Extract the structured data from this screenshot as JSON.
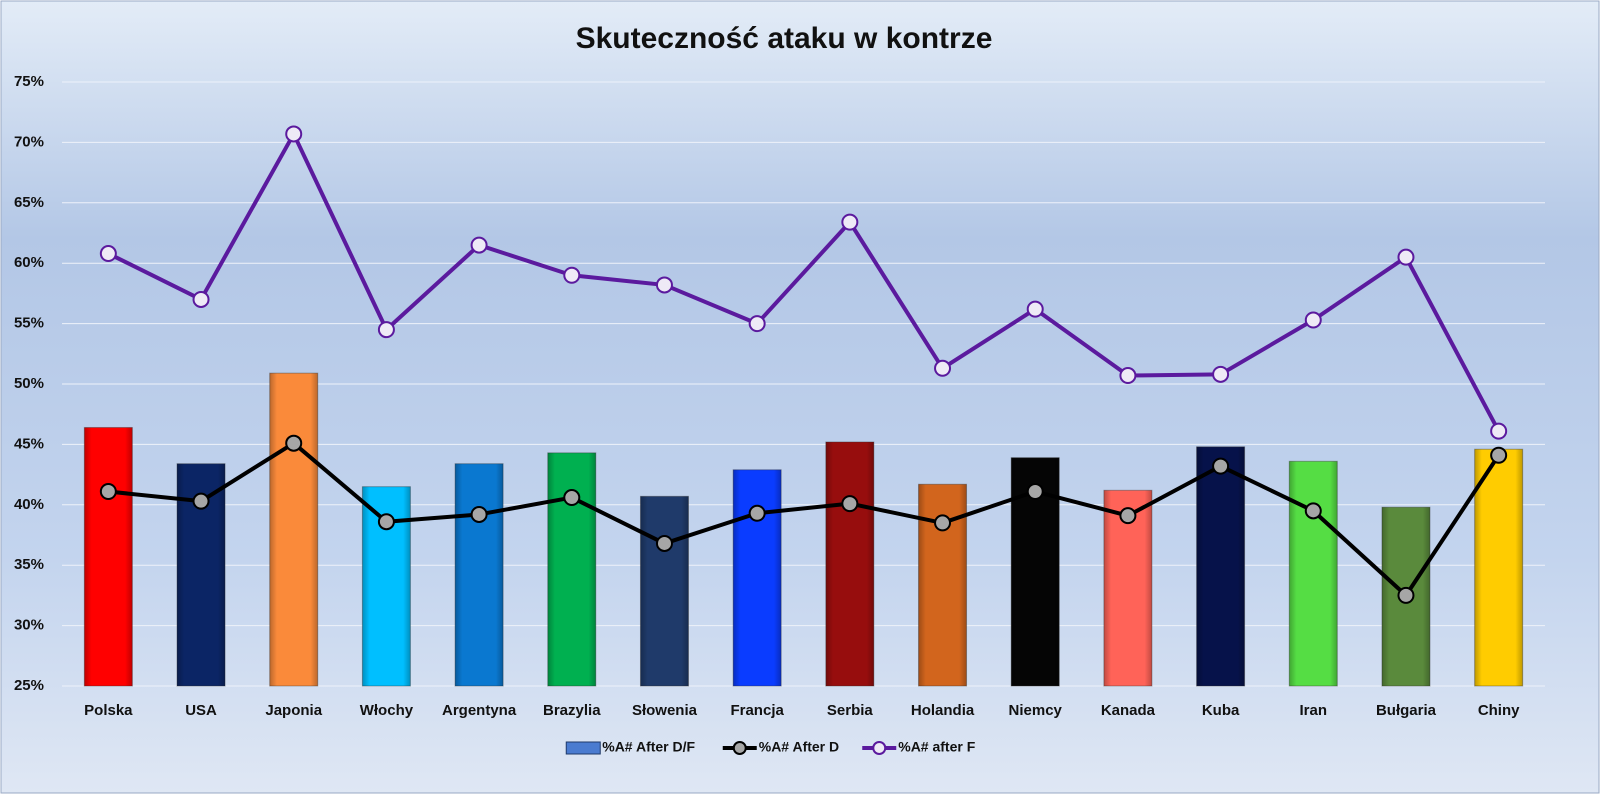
{
  "chart_data": {
    "type": "combo",
    "title": "Skuteczność ataku w kontrze",
    "categories": [
      "Polska",
      "USA",
      "Japonia",
      "Włochy",
      "Argentyna",
      "Brazylia",
      "Słowenia",
      "Francja",
      "Serbia",
      "Holandia",
      "Niemcy",
      "Kanada",
      "Kuba",
      "Iran",
      "Bułgaria",
      "Chiny"
    ],
    "ylim": [
      25,
      75
    ],
    "yticks": [
      {
        "value": 25,
        "label": "25%"
      },
      {
        "value": 30,
        "label": "30%"
      },
      {
        "value": 35,
        "label": "35%"
      },
      {
        "value": 40,
        "label": "40%"
      },
      {
        "value": 45,
        "label": "45%"
      },
      {
        "value": 50,
        "label": "50%"
      },
      {
        "value": 55,
        "label": "55%"
      },
      {
        "value": 60,
        "label": "60%"
      },
      {
        "value": 65,
        "label": "65%"
      },
      {
        "value": 70,
        "label": "70%"
      },
      {
        "value": 75,
        "label": "75%"
      }
    ],
    "grid": true,
    "legend": "bottom",
    "series": [
      {
        "name": "%A# After D/F",
        "type": "bar",
        "color": "#4a7bd0",
        "colors": [
          "#ff0000",
          "#0b2565",
          "#fa8a3a",
          "#00bfff",
          "#0a78d0",
          "#00b050",
          "#1f3a6a",
          "#0a3cff",
          "#970d0d",
          "#d2651d",
          "#050505",
          "#ff6358",
          "#06124a",
          "#55dd44",
          "#5a8a3c",
          "#ffcc00"
        ],
        "values": [
          46.4,
          43.4,
          50.9,
          41.5,
          43.4,
          44.3,
          40.7,
          42.9,
          45.2,
          41.7,
          43.9,
          41.2,
          44.8,
          43.6,
          39.8,
          44.6
        ]
      },
      {
        "name": "%A# After D",
        "type": "line",
        "color": "#000000",
        "marker": "#a6a6a6",
        "values": [
          41.1,
          40.3,
          45.1,
          38.6,
          39.2,
          40.6,
          36.8,
          39.3,
          40.1,
          38.5,
          41.1,
          39.1,
          43.2,
          39.5,
          32.5,
          44.1
        ]
      },
      {
        "name": "%A# after F",
        "type": "line",
        "color": "#5b1a9e",
        "marker": "#eeeaf6",
        "values": [
          60.8,
          57.0,
          70.7,
          54.5,
          61.5,
          59.0,
          58.2,
          55.0,
          63.4,
          51.3,
          56.2,
          50.7,
          50.8,
          55.3,
          60.5,
          46.1
        ]
      }
    ]
  }
}
